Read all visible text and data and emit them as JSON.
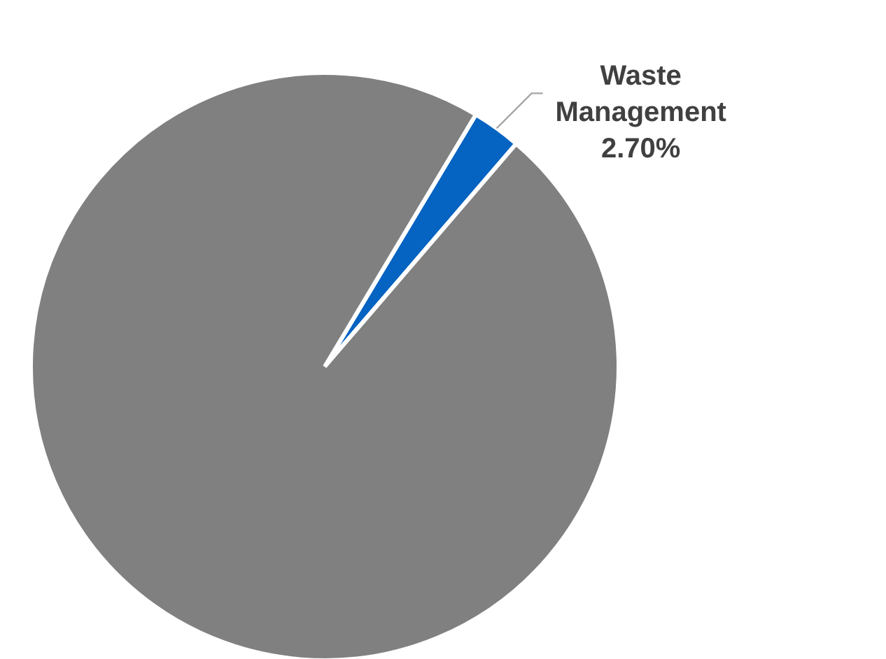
{
  "chart_data": {
    "type": "pie",
    "categories": [
      "Waste Management",
      null
    ],
    "values": [
      2.7,
      97.3
    ],
    "colors": [
      "#0563c1",
      "#808080"
    ],
    "value_labels": [
      "2.70%",
      null
    ]
  }
}
